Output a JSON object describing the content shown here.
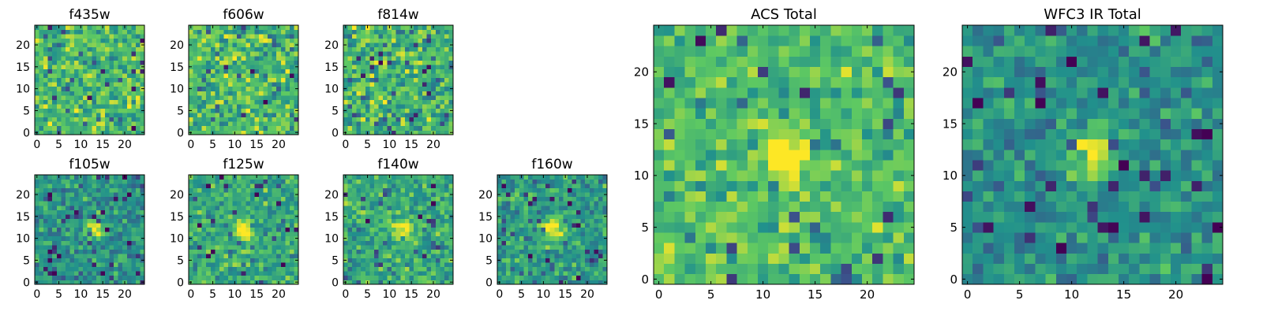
{
  "figure": {
    "colormap": "viridis",
    "colormap_stops": [
      "#440154",
      "#3b528b",
      "#21918c",
      "#5ec962",
      "#fde725"
    ]
  },
  "chart_data": [
    {
      "type": "heatmap",
      "title": "f435w",
      "grid_size": 25,
      "xticks": [
        0,
        5,
        10,
        15,
        20
      ],
      "yticks": [
        0,
        5,
        10,
        15,
        20
      ],
      "xlim": [
        -0.5,
        24.5
      ],
      "ylim": [
        -0.5,
        24.5
      ],
      "source_center": null,
      "noise": 0.16,
      "mean_level": 0.68
    },
    {
      "type": "heatmap",
      "title": "f606w",
      "grid_size": 25,
      "xticks": [
        0,
        5,
        10,
        15,
        20
      ],
      "yticks": [
        0,
        5,
        10,
        15,
        20
      ],
      "xlim": [
        -0.5,
        24.5
      ],
      "ylim": [
        -0.5,
        24.5
      ],
      "source_center": null,
      "noise": 0.18,
      "mean_level": 0.66
    },
    {
      "type": "heatmap",
      "title": "f814w",
      "grid_size": 25,
      "xticks": [
        0,
        5,
        10,
        15,
        20
      ],
      "yticks": [
        0,
        5,
        10,
        15,
        20
      ],
      "xlim": [
        -0.5,
        24.5
      ],
      "ylim": [
        -0.5,
        24.5
      ],
      "source_center": null,
      "noise": 0.18,
      "mean_level": 0.64
    },
    {
      "type": "heatmap",
      "title": "f105w",
      "grid_size": 25,
      "xticks": [
        0,
        5,
        10,
        15,
        20
      ],
      "yticks": [
        0,
        5,
        10,
        15,
        20
      ],
      "xlim": [
        -0.5,
        24.5
      ],
      "ylim": [
        -0.5,
        24.5
      ],
      "source_center": [
        13,
        12
      ],
      "noise": 0.13,
      "mean_level": 0.52
    },
    {
      "type": "heatmap",
      "title": "f125w",
      "grid_size": 25,
      "xticks": [
        0,
        5,
        10,
        15,
        20
      ],
      "yticks": [
        0,
        5,
        10,
        15,
        20
      ],
      "xlim": [
        -0.5,
        24.5
      ],
      "ylim": [
        -0.5,
        24.5
      ],
      "source_center": [
        12,
        12
      ],
      "noise": 0.14,
      "mean_level": 0.6
    },
    {
      "type": "heatmap",
      "title": "f140w",
      "grid_size": 25,
      "xticks": [
        0,
        5,
        10,
        15,
        20
      ],
      "yticks": [
        0,
        5,
        10,
        15,
        20
      ],
      "xlim": [
        -0.5,
        24.5
      ],
      "ylim": [
        -0.5,
        24.5
      ],
      "source_center": [
        13,
        12
      ],
      "noise": 0.14,
      "mean_level": 0.6
    },
    {
      "type": "heatmap",
      "title": "f160w",
      "grid_size": 25,
      "xticks": [
        0,
        5,
        10,
        15,
        20
      ],
      "yticks": [
        0,
        5,
        10,
        15,
        20
      ],
      "xlim": [
        -0.5,
        24.5
      ],
      "ylim": [
        -0.5,
        24.5
      ],
      "source_center": [
        12,
        12
      ],
      "noise": 0.14,
      "mean_level": 0.55
    },
    {
      "type": "heatmap",
      "title": "ACS Total",
      "grid_size": 25,
      "xticks": [
        0,
        5,
        10,
        15,
        20
      ],
      "yticks": [
        0,
        5,
        10,
        15,
        20
      ],
      "xlim": [
        -0.5,
        24.5
      ],
      "ylim": [
        -0.5,
        24.5
      ],
      "source_center": [
        12,
        12
      ],
      "noise": 0.13,
      "mean_level": 0.7
    },
    {
      "type": "heatmap",
      "title": "WFC3 IR Total",
      "grid_size": 25,
      "xticks": [
        0,
        5,
        10,
        15,
        20
      ],
      "yticks": [
        0,
        5,
        10,
        15,
        20
      ],
      "xlim": [
        -0.5,
        24.5
      ],
      "ylim": [
        -0.5,
        24.5
      ],
      "source_center": [
        12,
        12
      ],
      "noise": 0.12,
      "mean_level": 0.5
    }
  ]
}
